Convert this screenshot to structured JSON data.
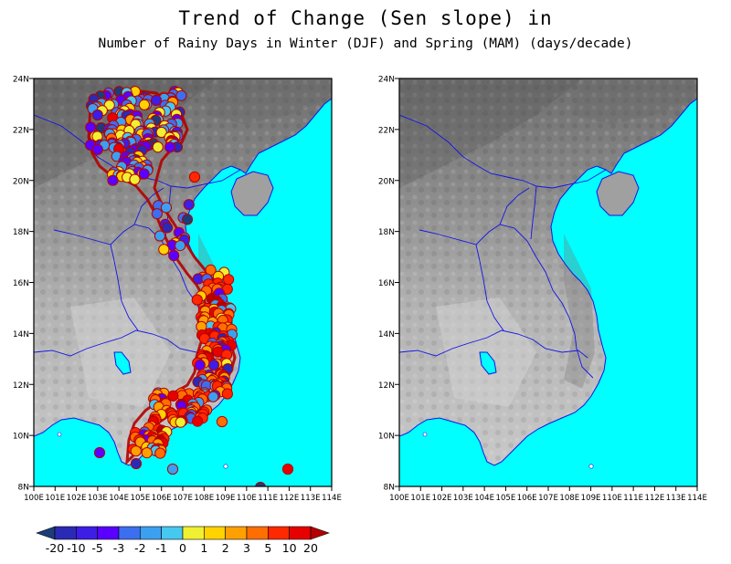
{
  "title_line1": "Trend of Change (Sen slope) in",
  "title_line2": "Number of Rainy Days in Winter (DJF) and Spring (MAM) (days/decade)",
  "lat_labels": [
    "24N",
    "22N",
    "20N",
    "18N",
    "16N",
    "14N",
    "12N",
    "10N",
    "8N"
  ],
  "lon_labels": [
    "100E",
    "101E",
    "102E",
    "103E",
    "104E",
    "105E",
    "106E",
    "107E",
    "108E",
    "109E",
    "110E",
    "111E",
    "112E",
    "113E",
    "114E"
  ],
  "colorbar_labels": [
    "-20",
    "-10",
    "-5",
    "-3",
    "-2",
    "-1",
    "0",
    "1",
    "2",
    "3",
    "5",
    "10",
    "20"
  ],
  "colorbar_colors": [
    "#1e3c78",
    "#2a2ab4",
    "#3c1ee6",
    "#5a00ff",
    "#3c6ef0",
    "#3ca0f0",
    "#46c8f0",
    "#f0f032",
    "#ffd200",
    "#ffa000",
    "#ff6e00",
    "#ff2800",
    "#e60000",
    "#b40000"
  ],
  "colors": {
    "ocean": "#00ffff",
    "border": "#1414e6",
    "frame": "#000000"
  },
  "panels": [
    {
      "name": "djf",
      "has_stations": true
    },
    {
      "name": "mam",
      "has_stations": false
    }
  ]
}
